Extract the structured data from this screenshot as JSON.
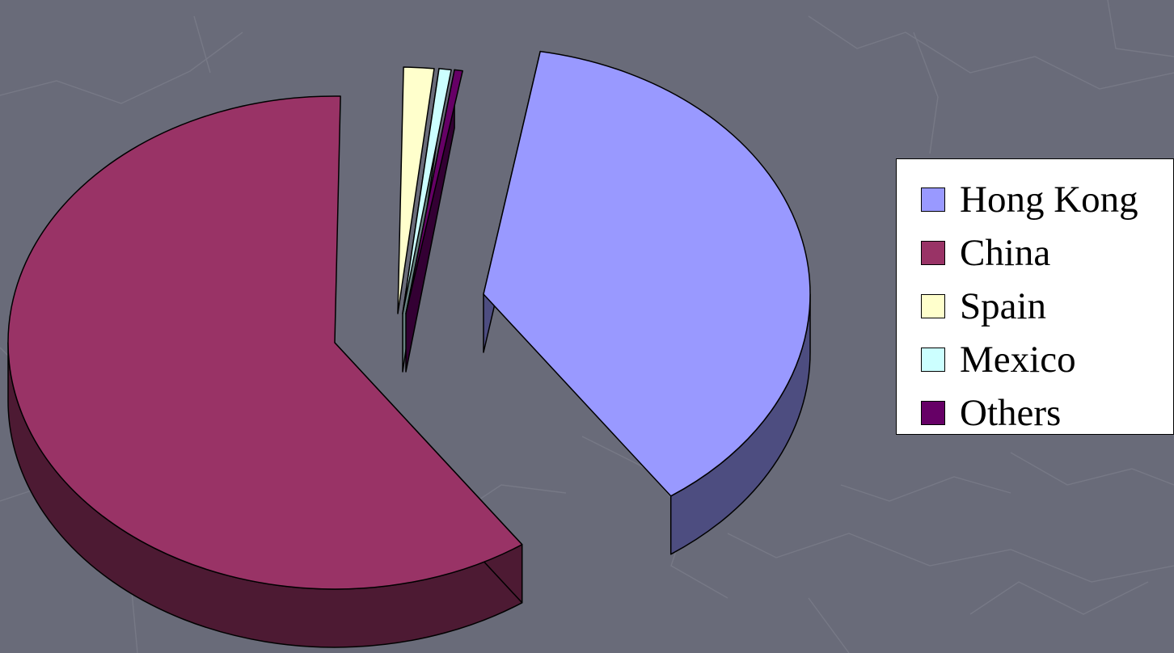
{
  "chart_data": {
    "type": "pie",
    "style": "3d-exploded",
    "categories": [
      "Hong Kong",
      "China",
      "Spain",
      "Mexico",
      "Others"
    ],
    "values": [
      37.5,
      60.0,
      1.5,
      0.6,
      0.4
    ],
    "unit": "%",
    "colors": [
      "#9999ff",
      "#993366",
      "#ffffcc",
      "#ccffff",
      "#660066"
    ],
    "legend": {
      "position": "right"
    }
  },
  "background": {
    "color": "#696b79",
    "line_color": "#777986"
  },
  "legend_items": [
    {
      "label": "Hong Kong",
      "color": "#9999ff"
    },
    {
      "label": "China",
      "color": "#993366"
    },
    {
      "label": "Spain",
      "color": "#ffffcc"
    },
    {
      "label": "Mexico",
      "color": "#ccffff"
    },
    {
      "label": "Others",
      "color": "#660066"
    }
  ]
}
